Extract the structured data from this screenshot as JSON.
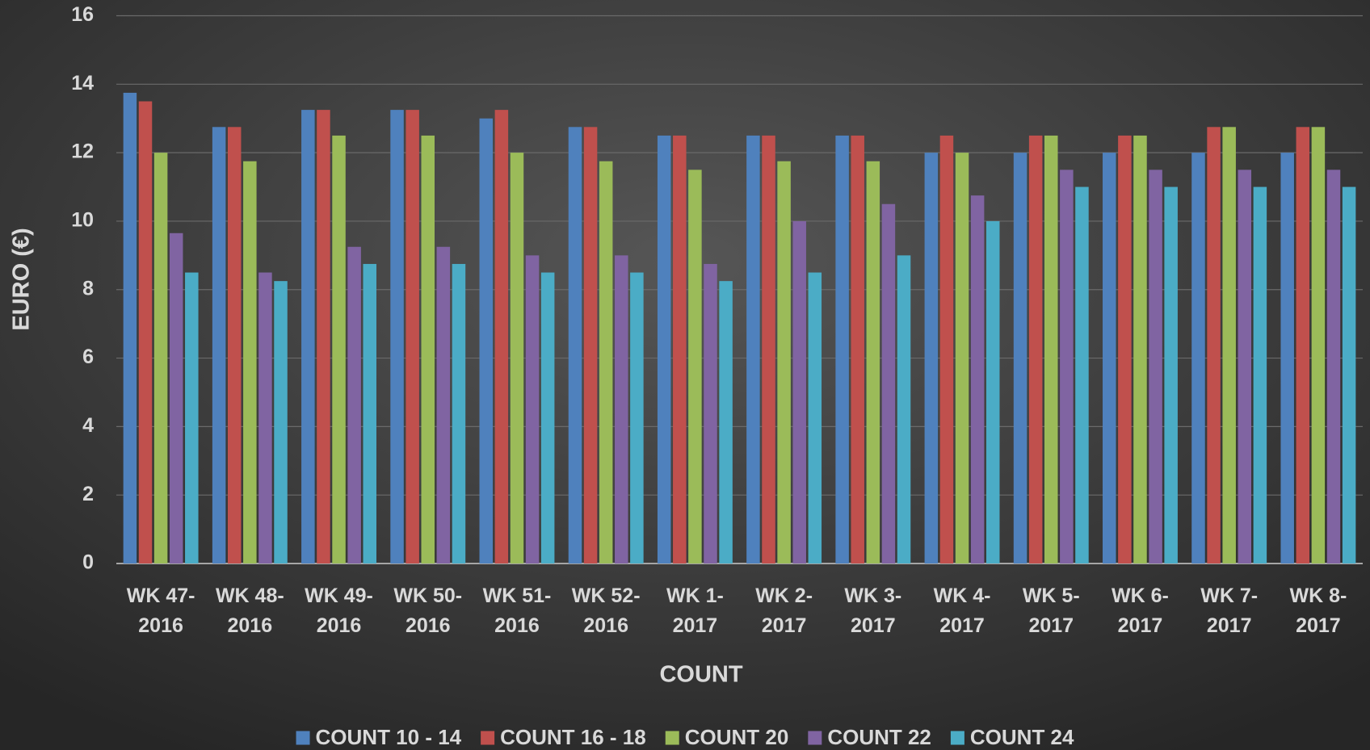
{
  "chart_data": {
    "type": "bar",
    "x_label": "COUNT",
    "y_label": "EURO (€)",
    "categories": [
      "WK 47-2016",
      "WK 48-2016",
      "WK 49-2016",
      "WK 50-2016",
      "WK 51-2016",
      "WK 52-2016",
      "WK 1-2017",
      "WK 2-2017",
      "WK 3-2017",
      "WK 4-2017",
      "WK 5-2017",
      "WK 6-2017",
      "WK 7-2017",
      "WK 8-2017"
    ],
    "series": [
      {
        "name": "COUNT 10 - 14",
        "color": "#4f81bd",
        "values": [
          13.75,
          12.75,
          13.25,
          13.25,
          13,
          12.75,
          12.5,
          12.5,
          12.5,
          12,
          12,
          12,
          12,
          12
        ]
      },
      {
        "name": "COUNT 16 - 18",
        "color": "#c0504d",
        "values": [
          13.5,
          12.75,
          13.25,
          13.25,
          13.25,
          12.75,
          12.5,
          12.5,
          12.5,
          12.5,
          12.5,
          12.5,
          12.75,
          12.75
        ]
      },
      {
        "name": "COUNT 20",
        "color": "#9bbb59",
        "values": [
          12,
          11.75,
          12.5,
          12.5,
          12,
          11.75,
          11.5,
          11.75,
          11.75,
          12,
          12.5,
          12.5,
          12.75,
          12.75
        ]
      },
      {
        "name": "COUNT 22",
        "color": "#8064a2",
        "values": [
          9.65,
          8.5,
          9.25,
          9.25,
          9,
          9,
          8.75,
          10,
          10.5,
          10.75,
          11.5,
          11.5,
          11.5,
          11.5
        ]
      },
      {
        "name": "COUNT 24",
        "color": "#4bacc6",
        "values": [
          8.5,
          8.25,
          8.75,
          8.75,
          8.5,
          8.5,
          8.25,
          8.5,
          9,
          10,
          11,
          11,
          11,
          11
        ]
      }
    ],
    "ylim": [
      0,
      16
    ],
    "yticks": [
      0,
      2,
      4,
      6,
      8,
      10,
      12,
      14,
      16
    ],
    "grid": true,
    "legend": "bottom"
  }
}
